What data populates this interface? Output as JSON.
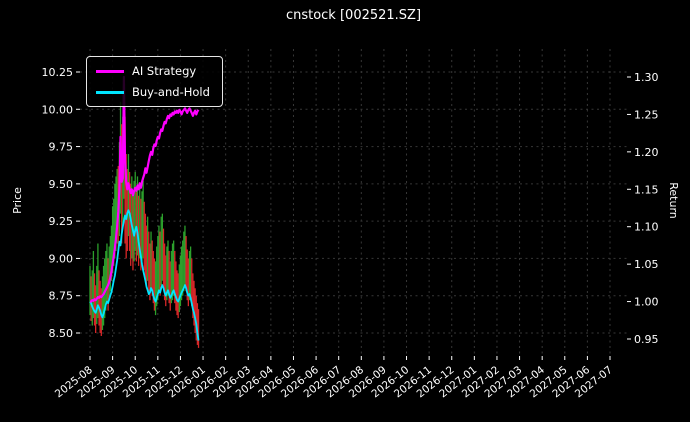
{
  "chart_data": {
    "type": "line+candlestick",
    "title": "cnstock [002521.SZ]",
    "ylabel_left": "Price",
    "ylabel_right": "Return",
    "legend_position": "upper-left",
    "grid": "dashed",
    "price_axis_ticks": [
      "8.50",
      "8.75",
      "9.00",
      "9.25",
      "9.50",
      "9.75",
      "10.00",
      "10.25"
    ],
    "return_axis_ticks": [
      "0.95",
      "1.00",
      "1.05",
      "1.10",
      "1.15",
      "1.20",
      "1.25",
      "1.30"
    ],
    "price_axis_range": [
      8.35,
      10.4
    ],
    "return_axis_range": [
      0.93,
      1.335
    ],
    "x_tick_labels": [
      "2025-08",
      "2025-09",
      "2025-10",
      "2025-11",
      "2025-12",
      "2026-01",
      "2026-02",
      "2026-03",
      "2026-04",
      "2026-05",
      "2026-06",
      "2026-07",
      "2026-08",
      "2026-09",
      "2026-10",
      "2026-11",
      "2026-12",
      "2027-01",
      "2027-02",
      "2027-03",
      "2027-04",
      "2027-05",
      "2027-06",
      "2027-07"
    ],
    "sample_step_months": 0.05,
    "colors": {
      "background": "#000000",
      "text": "#ffffff",
      "grid": "#6e6e6e",
      "up": "#2ca02c",
      "down": "#d62728"
    },
    "series": [
      {
        "name": "AI Strategy",
        "axis": "return",
        "color": "#ff00ff",
        "values": [
          1.0,
          1.0,
          1.002,
          1.001,
          1.003,
          1.002,
          1.004,
          1.006,
          1.005,
          1.007,
          1.006,
          1.008,
          1.01,
          1.013,
          1.016,
          1.019,
          1.022,
          1.026,
          1.032,
          1.04,
          1.05,
          1.06,
          1.072,
          1.085,
          1.1,
          1.12,
          1.15,
          1.22,
          1.16,
          1.165,
          1.3,
          1.19,
          1.16,
          1.15,
          1.158,
          1.15,
          1.145,
          1.15,
          1.142,
          1.148,
          1.152,
          1.148,
          1.155,
          1.15,
          1.158,
          1.152,
          1.16,
          1.165,
          1.17,
          1.178,
          1.172,
          1.18,
          1.188,
          1.195,
          1.2,
          1.196,
          1.205,
          1.21,
          1.208,
          1.215,
          1.22,
          1.218,
          1.225,
          1.23,
          1.228,
          1.235,
          1.24,
          1.238,
          1.244,
          1.248,
          1.245,
          1.25,
          1.248,
          1.252,
          1.25,
          1.254,
          1.252,
          1.255,
          1.252,
          1.256,
          1.254,
          1.25,
          1.254,
          1.256,
          1.258,
          1.255,
          1.252,
          1.256,
          1.258,
          1.255,
          1.252,
          1.248,
          1.252,
          1.255,
          1.25,
          1.254,
          1.256
        ]
      },
      {
        "name": "Buy-and-Hold",
        "axis": "return",
        "color": "#00e5ff",
        "values": [
          1.0,
          0.998,
          0.993,
          0.99,
          0.987,
          0.985,
          0.99,
          0.995,
          0.992,
          0.988,
          0.982,
          0.979,
          0.984,
          0.99,
          0.996,
          1.0,
          0.998,
          1.003,
          1.008,
          1.013,
          1.02,
          1.028,
          1.035,
          1.045,
          1.055,
          1.068,
          1.08,
          1.075,
          1.09,
          1.1,
          1.108,
          1.115,
          1.11,
          1.118,
          1.122,
          1.118,
          1.11,
          1.102,
          1.095,
          1.088,
          1.095,
          1.1,
          1.092,
          1.08,
          1.07,
          1.06,
          1.05,
          1.042,
          1.035,
          1.028,
          1.02,
          1.015,
          1.01,
          1.012,
          1.018,
          1.015,
          1.008,
          1.003,
          1.0,
          1.005,
          1.01,
          1.015,
          1.012,
          1.018,
          1.022,
          1.018,
          1.012,
          1.008,
          1.012,
          1.015,
          1.01,
          1.005,
          1.008,
          1.012,
          1.015,
          1.01,
          1.006,
          1.002,
          1.0,
          1.004,
          1.008,
          1.012,
          1.015,
          1.018,
          1.022,
          1.018,
          1.012,
          1.008,
          1.01,
          1.005,
          0.998,
          0.99,
          0.985,
          0.978,
          0.97,
          0.958,
          0.948
        ]
      }
    ],
    "candles_axis": "price",
    "candles": [
      [
        8.62,
        8.95,
        "g"
      ],
      [
        8.58,
        8.88,
        "r"
      ],
      [
        8.55,
        8.92,
        "g"
      ],
      [
        8.6,
        9.05,
        "g"
      ],
      [
        8.55,
        8.9,
        "r"
      ],
      [
        8.5,
        8.82,
        "r"
      ],
      [
        8.56,
        8.95,
        "g"
      ],
      [
        8.6,
        9.1,
        "g"
      ],
      [
        8.55,
        8.92,
        "r"
      ],
      [
        8.5,
        8.85,
        "r"
      ],
      [
        8.48,
        8.8,
        "r"
      ],
      [
        8.52,
        8.88,
        "g"
      ],
      [
        8.55,
        8.95,
        "g"
      ],
      [
        8.6,
        9.0,
        "g"
      ],
      [
        8.65,
        9.05,
        "g"
      ],
      [
        8.7,
        9.1,
        "g"
      ],
      [
        8.65,
        9.0,
        "r"
      ],
      [
        8.72,
        9.08,
        "g"
      ],
      [
        8.78,
        9.15,
        "g"
      ],
      [
        8.85,
        9.22,
        "g"
      ],
      [
        8.9,
        9.35,
        "g"
      ],
      [
        8.95,
        9.4,
        "g"
      ],
      [
        9.0,
        9.5,
        "g"
      ],
      [
        9.05,
        9.55,
        "g"
      ],
      [
        9.1,
        9.6,
        "g"
      ],
      [
        9.05,
        9.62,
        "r"
      ],
      [
        9.15,
        9.78,
        "g"
      ],
      [
        9.3,
        10.05,
        "g"
      ],
      [
        9.1,
        9.9,
        "r"
      ],
      [
        9.2,
        9.95,
        "g"
      ],
      [
        9.4,
        10.1,
        "g"
      ],
      [
        9.1,
        9.95,
        "r"
      ],
      [
        9.0,
        9.7,
        "r"
      ],
      [
        9.05,
        9.6,
        "r"
      ],
      [
        9.15,
        9.7,
        "g"
      ],
      [
        9.05,
        9.58,
        "r"
      ],
      [
        8.95,
        9.5,
        "r"
      ],
      [
        9.0,
        9.55,
        "g"
      ],
      [
        8.92,
        9.45,
        "r"
      ],
      [
        8.98,
        9.52,
        "g"
      ],
      [
        9.05,
        9.58,
        "g"
      ],
      [
        8.98,
        9.48,
        "r"
      ],
      [
        9.02,
        9.55,
        "g"
      ],
      [
        8.95,
        9.42,
        "r"
      ],
      [
        9.0,
        9.5,
        "g"
      ],
      [
        8.92,
        9.4,
        "r"
      ],
      [
        8.98,
        9.45,
        "g"
      ],
      [
        9.0,
        9.52,
        "g"
      ],
      [
        8.92,
        9.38,
        "r"
      ],
      [
        8.85,
        9.3,
        "r"
      ],
      [
        8.8,
        9.22,
        "r"
      ],
      [
        8.85,
        9.28,
        "g"
      ],
      [
        8.78,
        9.18,
        "r"
      ],
      [
        8.72,
        9.1,
        "r"
      ],
      [
        8.78,
        9.18,
        "g"
      ],
      [
        8.75,
        9.12,
        "r"
      ],
      [
        8.7,
        9.05,
        "r"
      ],
      [
        8.65,
        9.0,
        "r"
      ],
      [
        8.62,
        8.98,
        "g"
      ],
      [
        8.68,
        9.08,
        "g"
      ],
      [
        8.72,
        9.15,
        "g"
      ],
      [
        8.78,
        9.22,
        "g"
      ],
      [
        8.75,
        9.18,
        "r"
      ],
      [
        8.82,
        9.28,
        "g"
      ],
      [
        8.85,
        9.3,
        "g"
      ],
      [
        8.8,
        9.2,
        "r"
      ],
      [
        8.72,
        9.1,
        "r"
      ],
      [
        8.68,
        9.02,
        "r"
      ],
      [
        8.72,
        9.08,
        "g"
      ],
      [
        8.75,
        9.12,
        "g"
      ],
      [
        8.7,
        9.05,
        "r"
      ],
      [
        8.65,
        8.98,
        "r"
      ],
      [
        8.7,
        9.05,
        "g"
      ],
      [
        8.72,
        9.1,
        "g"
      ],
      [
        8.75,
        9.12,
        "g"
      ],
      [
        8.7,
        9.05,
        "r"
      ],
      [
        8.65,
        8.98,
        "r"
      ],
      [
        8.62,
        8.92,
        "r"
      ],
      [
        8.6,
        8.9,
        "r"
      ],
      [
        8.64,
        8.96,
        "g"
      ],
      [
        8.68,
        9.02,
        "g"
      ],
      [
        8.72,
        9.08,
        "g"
      ],
      [
        8.75,
        9.12,
        "g"
      ],
      [
        8.78,
        9.18,
        "g"
      ],
      [
        8.82,
        9.22,
        "g"
      ],
      [
        8.78,
        9.15,
        "r"
      ],
      [
        8.72,
        9.06,
        "r"
      ],
      [
        8.68,
        9.0,
        "r"
      ],
      [
        8.72,
        9.05,
        "g"
      ],
      [
        8.75,
        9.08,
        "g"
      ],
      [
        8.68,
        9.0,
        "r"
      ],
      [
        8.6,
        8.9,
        "r"
      ],
      [
        8.55,
        8.85,
        "r"
      ],
      [
        8.5,
        8.8,
        "r"
      ],
      [
        8.45,
        8.75,
        "r"
      ],
      [
        8.42,
        8.7,
        "r"
      ],
      [
        8.4,
        8.66,
        "r"
      ]
    ]
  }
}
